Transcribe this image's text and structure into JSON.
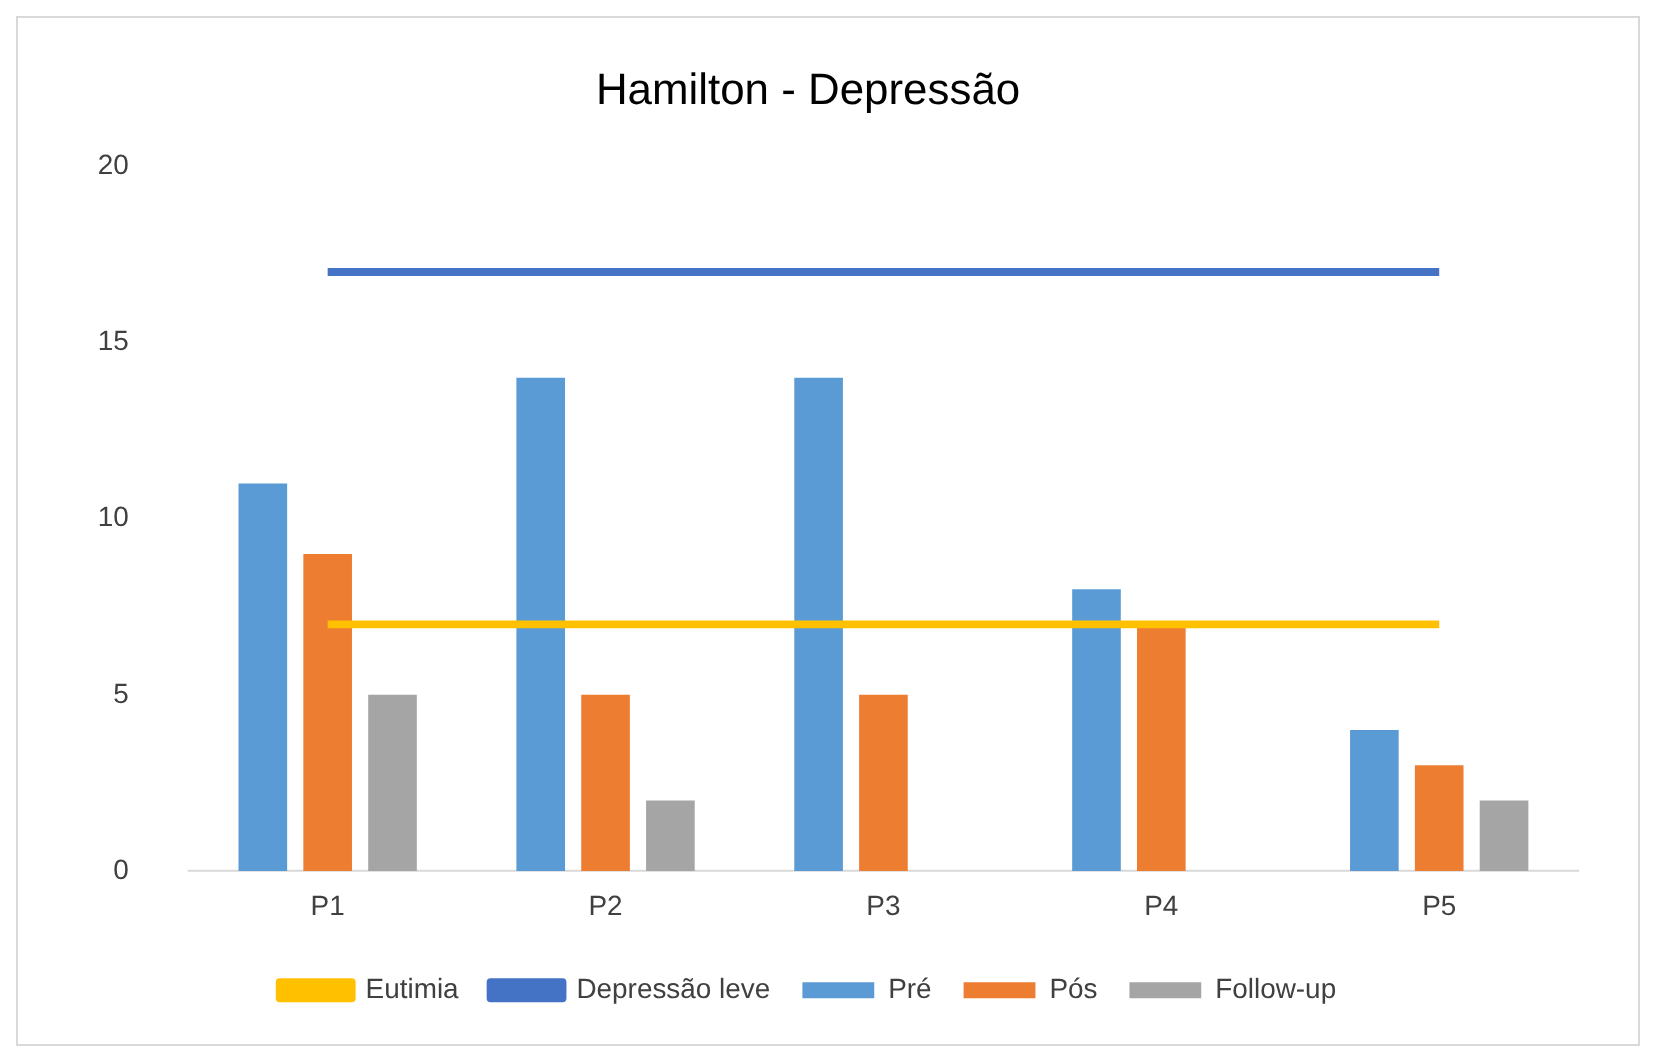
{
  "chart_data": {
    "type": "bar",
    "title": "Hamilton - Depressão",
    "categories": [
      "P1",
      "P2",
      "P3",
      "P4",
      "P5"
    ],
    "series": [
      {
        "name": "Pré",
        "color": "#5b9bd5",
        "values": [
          11,
          14,
          14,
          8,
          4
        ]
      },
      {
        "name": "Pós",
        "color": "#ed7d31",
        "values": [
          9,
          5,
          5,
          7,
          3
        ]
      },
      {
        "name": "Follow-up",
        "color": "#a5a5a5",
        "values": [
          5,
          2,
          0,
          0,
          2
        ]
      },
      {
        "name": "Eutimia",
        "type": "line",
        "color": "#ffc000",
        "values": [
          7,
          7,
          7,
          7,
          7
        ]
      },
      {
        "name": "Depressão leve",
        "type": "line",
        "color": "#4472c4",
        "values": [
          17,
          17,
          17,
          17,
          17
        ]
      }
    ],
    "ylim": [
      0,
      20
    ],
    "yticks": [
      0,
      5,
      10,
      15,
      20
    ],
    "grid": false,
    "legend": "bottom",
    "marker": "none",
    "line_style": "solid"
  }
}
